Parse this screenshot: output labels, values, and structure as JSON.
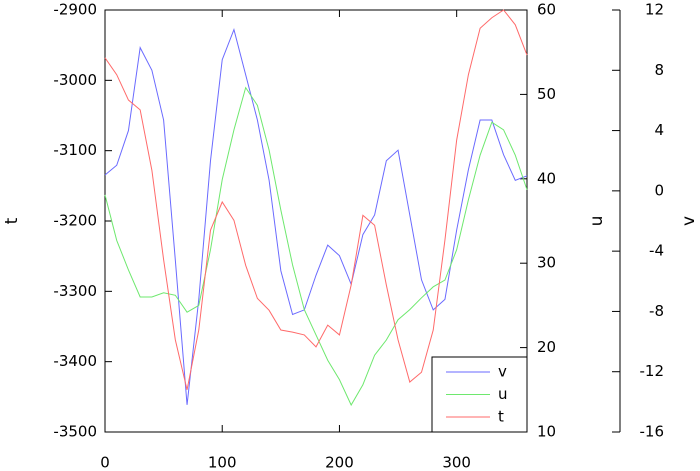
{
  "chart_data": {
    "type": "line",
    "x": [
      0,
      10,
      20,
      30,
      40,
      50,
      60,
      70,
      80,
      90,
      100,
      110,
      120,
      130,
      140,
      150,
      160,
      170,
      180,
      190,
      200,
      210,
      220,
      230,
      240,
      250,
      260,
      270,
      280,
      290,
      300,
      310,
      320,
      330,
      340,
      350,
      360
    ],
    "xlim": [
      0,
      360
    ],
    "xticks": [
      0,
      100,
      200,
      300
    ],
    "ylabel": "t",
    "ylim": [
      -3500,
      -2900
    ],
    "yticks": [
      -3500,
      -3400,
      -3300,
      -3200,
      -3100,
      -3000,
      -2900
    ],
    "y2label": "u",
    "y2lim": [
      10,
      60
    ],
    "y2ticks": [
      10,
      20,
      30,
      40,
      50,
      60
    ],
    "y3label": "v",
    "y3lim": [
      -16,
      12
    ],
    "y3ticks": [
      -16,
      -12,
      -8,
      -4,
      0,
      4,
      8,
      12
    ],
    "legend": "lower right",
    "series": [
      {
        "name": "v",
        "color": "#6a6aff",
        "axis": "y3",
        "values": [
          1.05,
          1.7,
          4.0,
          9.5,
          8.0,
          4.7,
          -4.6,
          -14.2,
          -7.2,
          2.0,
          8.7,
          10.7,
          7.7,
          4.7,
          0.7,
          -5.3,
          -8.2,
          -7.9,
          -5.6,
          -3.6,
          -4.3,
          -6.2,
          -2.9,
          -1.6,
          2.0,
          2.7,
          -1.6,
          -5.9,
          -7.9,
          -7.2,
          -2.6,
          1.4,
          4.7,
          4.7,
          2.4,
          0.7,
          1.0
        ]
      },
      {
        "name": "u",
        "color": "#6ee86e",
        "axis": "y2",
        "values": [
          38.1,
          32.7,
          29.2,
          26.0,
          26.0,
          26.5,
          26.2,
          24.2,
          25.0,
          31.6,
          39.9,
          45.8,
          50.8,
          48.7,
          43.4,
          36.3,
          29.8,
          24.5,
          21.5,
          18.5,
          16.2,
          13.2,
          15.6,
          19.1,
          20.9,
          23.3,
          24.5,
          25.9,
          27.2,
          28.0,
          31.6,
          37.5,
          42.8,
          46.7,
          45.8,
          42.8,
          38.7
        ]
      },
      {
        "name": "t",
        "color": "#ff6a6a",
        "axis": "y",
        "values": [
          -2968,
          -2992,
          -3028,
          -3042,
          -3128,
          -3255,
          -3369,
          -3440,
          -3355,
          -3213,
          -3173,
          -3199,
          -3263,
          -3310,
          -3327,
          -3355,
          -3358,
          -3362,
          -3379,
          -3348,
          -3362,
          -3291,
          -3192,
          -3206,
          -3291,
          -3369,
          -3429,
          -3415,
          -3355,
          -3227,
          -3085,
          -2992,
          -2926,
          -2911,
          -2900,
          -2921,
          -2964
        ]
      }
    ]
  }
}
